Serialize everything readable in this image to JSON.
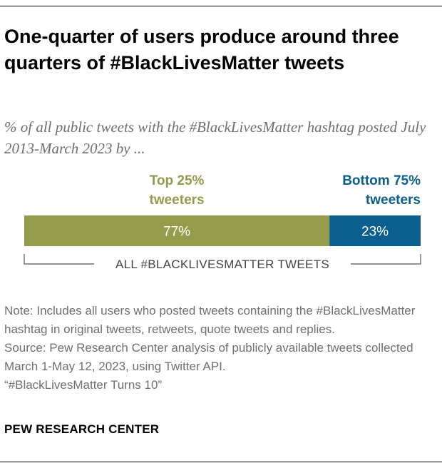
{
  "title": "One-quarter of users produce around three quarters of #BlackLivesMatter tweets",
  "subtitle": "% of all public tweets with the #BlackLivesMatter hashtag posted July 2013-March 2023 by ...",
  "chart_data": {
    "type": "bar",
    "orientation": "horizontal-stacked",
    "title": "One-quarter of users produce around three quarters of #BlackLivesMatter tweets",
    "subtitle": "% of all public tweets with the #BlackLivesMatter hashtag posted July 2013-March 2023 by ...",
    "axis_label": "ALL #BLACKLIVESMATTER TWEETS",
    "unit": "%",
    "xlim": [
      0,
      100
    ],
    "grid": false,
    "series": [
      {
        "name": "Top 25% tweeters",
        "label_lines": [
          "Top 25%",
          "tweeters"
        ],
        "value": 77,
        "display": "77%",
        "color": "#949b4b",
        "label_color": "#949b4b"
      },
      {
        "name": "Bottom 75% tweeters",
        "label_lines": [
          "Bottom 75%",
          "tweeters"
        ],
        "value": 23,
        "display": "23%",
        "color": "#0b5f8e",
        "label_color": "#0b5f8e"
      }
    ]
  },
  "notes": {
    "note": "Note: Includes all users who posted tweets containing the #BlackLivesMatter hashtag in original tweets, retweets, quote tweets and replies.",
    "source": "Source: Pew Research Center analysis of publicly available tweets collected March 1-May 12, 2023, using Twitter API.",
    "report": "“#BlackLivesMatter Turns 10”"
  },
  "credit": "PEW RESEARCH CENTER",
  "colors": {
    "text": "#000000",
    "muted": "#6f6f6f",
    "top_segment": "#949b4b",
    "bottom_segment": "#0b5f8e",
    "bar_label": "#ffffff"
  }
}
